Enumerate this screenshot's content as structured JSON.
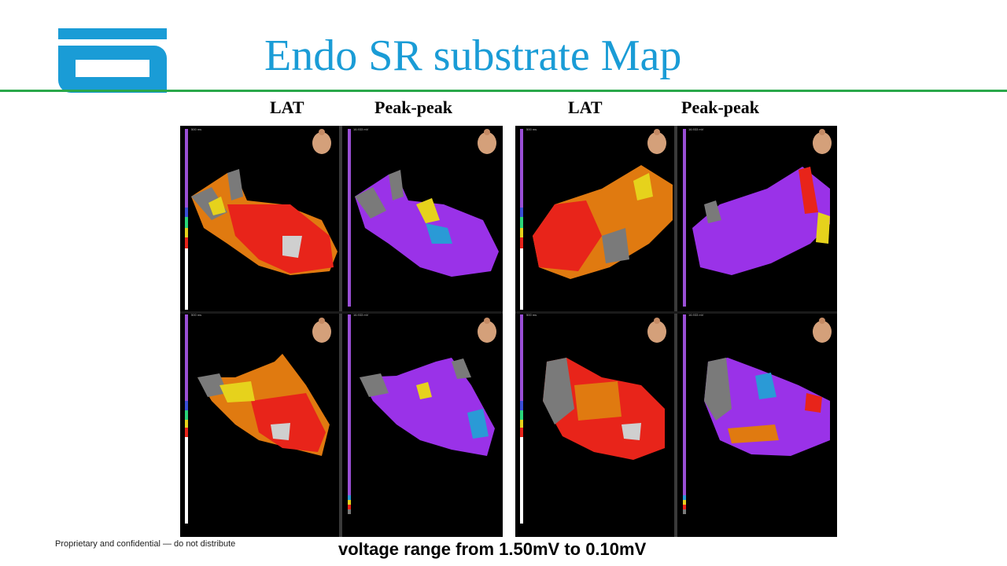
{
  "title": "Endo SR substrate Map",
  "column_labels": [
    "LAT",
    "Peak-peak",
    "LAT",
    "Peak-peak"
  ],
  "panels": [
    {
      "id": "lat-1-top",
      "type": "LAT",
      "scale_top": "500 ms"
    },
    {
      "id": "pp-1-top",
      "type": "Peak-peak",
      "scale_top": "16.933 mV"
    },
    {
      "id": "lat-2-top",
      "type": "LAT",
      "scale_top": "500 ms"
    },
    {
      "id": "pp-2-top",
      "type": "Peak-peak",
      "scale_top": "16.933 mV"
    },
    {
      "id": "lat-1-bottom",
      "type": "LAT",
      "scale_top": "500 ms"
    },
    {
      "id": "pp-1-bottom",
      "type": "Peak-peak",
      "scale_top": "16.933 mV"
    },
    {
      "id": "lat-2-bottom",
      "type": "LAT",
      "scale_top": "500 ms"
    },
    {
      "id": "pp-2-bottom",
      "type": "Peak-peak",
      "scale_top": "16.933 mV"
    }
  ],
  "footer_note": "Proprietary and confidential — do not distribute",
  "caption": "voltage range from 1.50mV to 0.10mV",
  "colors": {
    "title": "#1a9cd6",
    "logo": "#1a9cd6",
    "rule": "#2aa84a",
    "lat_red": "#e8241a",
    "lat_orange": "#e07a10",
    "lat_yellow": "#e6d21c",
    "scar_gray": "#7a7a7a",
    "pp_purple": "#9a32e8",
    "scale_purple": "#9a4fd6"
  }
}
